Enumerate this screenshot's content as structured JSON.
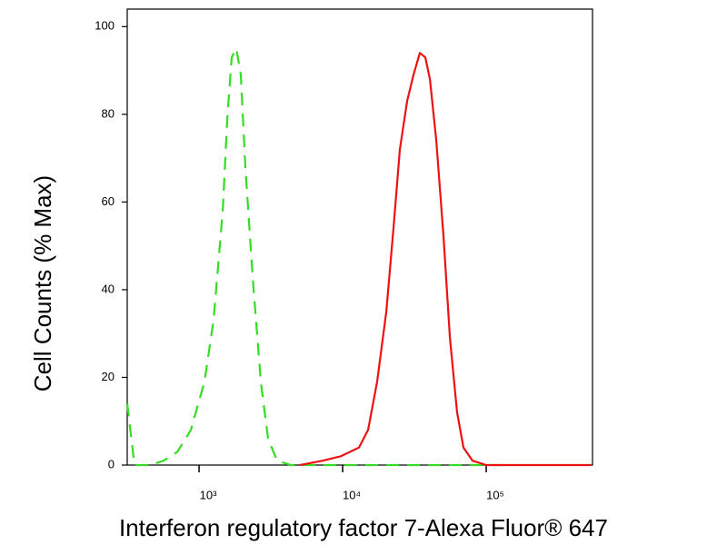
{
  "chart_data": {
    "type": "line",
    "xlabel": "Interferon regulatory factor 7-Alexa Fluor® 647",
    "ylabel": "Cell Counts (% Max)",
    "xscale": "log",
    "xlim": [
      316,
      550000
    ],
    "ylim": [
      0,
      104
    ],
    "xticks": [
      {
        "value": 1000,
        "label": "10³"
      },
      {
        "value": 10000,
        "label": "10⁴"
      },
      {
        "value": 100000,
        "label": "10⁵"
      }
    ],
    "yticks": [
      0,
      20,
      40,
      60,
      80,
      100
    ],
    "series": [
      {
        "color": "#33dd22",
        "style": "dashed",
        "x": [
          316,
          355,
          455,
          566,
          705,
          877,
          1091,
          1262,
          1462,
          1572,
          1690,
          1817,
          1954,
          2102,
          2361,
          2692,
          3025,
          3499,
          4355,
          14000,
          124000
        ],
        "values": [
          14,
          0,
          0,
          1,
          3,
          8,
          19,
          33,
          58,
          79,
          93,
          95,
          89,
          68,
          43,
          19,
          6,
          1,
          0,
          0,
          0
        ]
      },
      {
        "color": "#ee1111",
        "style": "solid",
        "x": [
          5047,
          7262,
          9707,
          12990,
          15030,
          17400,
          20140,
          22610,
          25040,
          28120,
          31170,
          34520,
          37670,
          40540,
          44890,
          50430,
          55860,
          62710,
          69460,
          80370,
          100000,
          535000
        ],
        "values": [
          0,
          1,
          2,
          4,
          8,
          19,
          35,
          54,
          72,
          83,
          89,
          94,
          93,
          88,
          74,
          52,
          29,
          12,
          4,
          1,
          0,
          0
        ]
      }
    ]
  }
}
